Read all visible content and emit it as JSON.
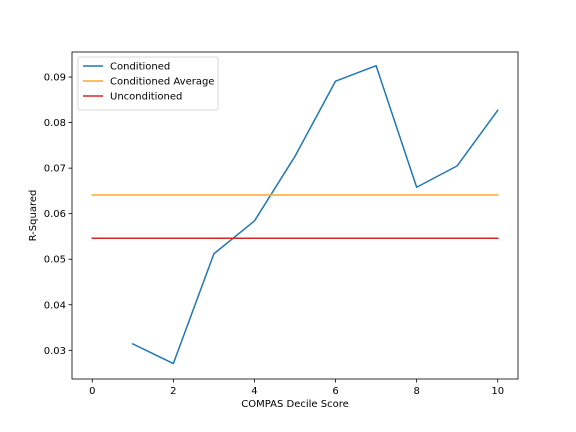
{
  "chart_data": {
    "type": "line",
    "title": "",
    "xlabel": "COMPAS Decile Score",
    "ylabel": "R-Squared",
    "xlim": [
      -0.5,
      10.5
    ],
    "ylim": [
      0.0237,
      0.0955
    ],
    "xticks": [
      0,
      2,
      4,
      6,
      8,
      10
    ],
    "yticks": [
      0.03,
      0.04,
      0.05,
      0.06,
      0.07,
      0.08,
      0.09
    ],
    "ytick_labels": [
      "0.03",
      "0.04",
      "0.05",
      "0.06",
      "0.07",
      "0.08",
      "0.09"
    ],
    "grid": false,
    "legend_position": "upper-left",
    "series": [
      {
        "name": "Conditioned",
        "color": "#1f77b4",
        "x": [
          1,
          2,
          3,
          4,
          5,
          6,
          7,
          8,
          9,
          10
        ],
        "y": [
          0.0314,
          0.0271,
          0.0512,
          0.0584,
          0.0726,
          0.0891,
          0.0925,
          0.0658,
          0.0705,
          0.0827
        ]
      },
      {
        "name": "Conditioned Average",
        "color": "#ffa726",
        "x": [
          0,
          10
        ],
        "y": [
          0.0641,
          0.0641
        ]
      },
      {
        "name": "Unconditioned",
        "color": "#d62728",
        "x": [
          0,
          10
        ],
        "y": [
          0.0546,
          0.0546
        ]
      }
    ]
  }
}
